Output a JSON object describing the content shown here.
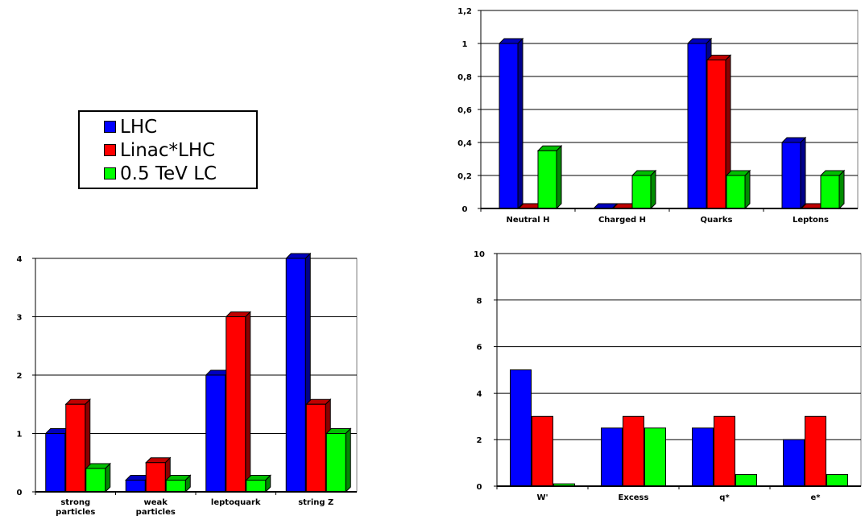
{
  "legend": {
    "items": [
      {
        "label": "LHC",
        "color": "#0000ff"
      },
      {
        "label": "Linac*LHC",
        "color": "#ff0000"
      },
      {
        "label": "0.5 TeV LC",
        "color": "#00ff00"
      }
    ]
  },
  "colors": {
    "LHC": "#0000ff",
    "Linac*LHC": "#ff0000",
    "0.5 TeV LC": "#00ff00"
  },
  "chart_data": [
    {
      "id": "top-right",
      "type": "bar",
      "style": "3d",
      "categories": [
        "Neutral H",
        "Charged H",
        "Quarks",
        "Leptons"
      ],
      "series": [
        {
          "name": "LHC",
          "values": [
            1.0,
            0.0,
            1.0,
            0.4
          ]
        },
        {
          "name": "Linac*LHC",
          "values": [
            0.0,
            0.0,
            0.9,
            0.0
          ]
        },
        {
          "name": "0.5 TeV LC",
          "values": [
            0.35,
            0.2,
            0.2,
            0.2
          ]
        }
      ],
      "ylim": [
        0,
        1.2
      ],
      "yticks": [
        "0",
        "0,2",
        "0,4",
        "0,6",
        "0,8",
        "1",
        "1,2"
      ],
      "grid": true
    },
    {
      "id": "bottom-left",
      "type": "bar",
      "style": "3d",
      "categories": [
        "strong\nparticles",
        "weak\nparticles",
        "leptoquark",
        "string Z"
      ],
      "series": [
        {
          "name": "LHC",
          "values": [
            1.0,
            0.2,
            2.0,
            4.0
          ]
        },
        {
          "name": "Linac*LHC",
          "values": [
            1.5,
            0.5,
            3.0,
            1.5
          ]
        },
        {
          "name": "0.5 TeV LC",
          "values": [
            0.4,
            0.2,
            0.2,
            1.0
          ]
        }
      ],
      "ylim": [
        0,
        4
      ],
      "yticks": [
        "0",
        "1",
        "2",
        "3",
        "4"
      ],
      "grid": true
    },
    {
      "id": "bottom-right",
      "type": "bar",
      "style": "flat",
      "categories": [
        "W'",
        "Excess",
        "q*",
        "e*"
      ],
      "series": [
        {
          "name": "LHC",
          "values": [
            5.0,
            2.5,
            2.5,
            2.0
          ]
        },
        {
          "name": "Linac*LHC",
          "values": [
            3.0,
            3.0,
            3.0,
            3.0
          ]
        },
        {
          "name": "0.5 TeV LC",
          "values": [
            0.1,
            2.5,
            0.5,
            0.5
          ]
        }
      ],
      "ylim": [
        0,
        10
      ],
      "yticks": [
        "0",
        "2",
        "4",
        "6",
        "8",
        "10"
      ],
      "grid": true
    }
  ]
}
